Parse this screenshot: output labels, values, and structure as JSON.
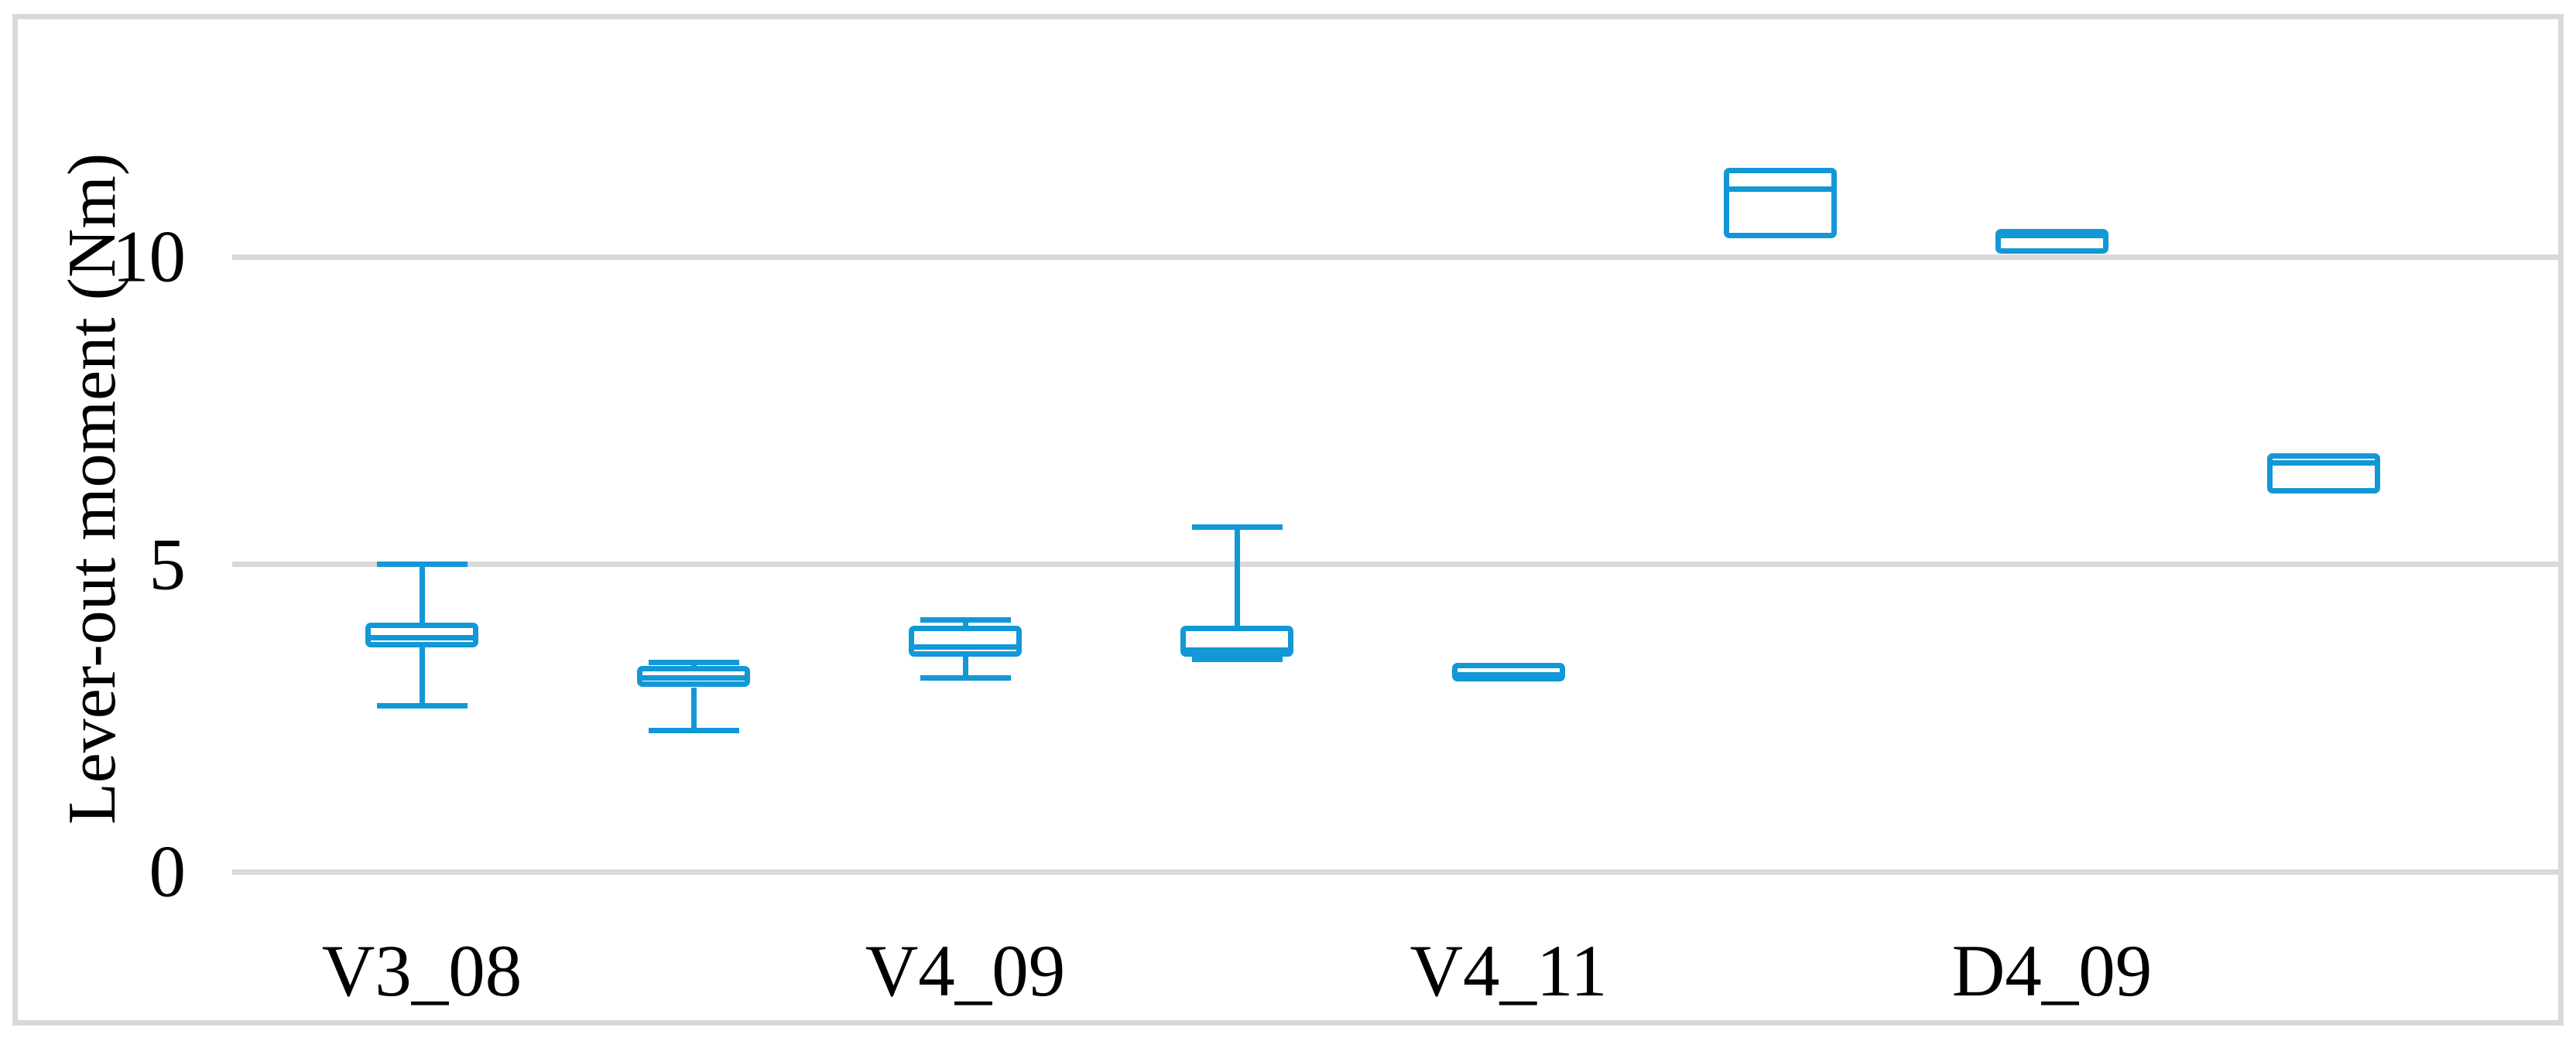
{
  "figure_title": "",
  "colors": {
    "box_blue": "#1298d6",
    "gridline_gray": "#d9d9d9",
    "frame_gray": "#d9d9d9",
    "text_black": "#000000"
  },
  "chart_data": {
    "type": "boxplot",
    "title": "",
    "xlabel": "",
    "ylabel": "Lever-out moment (Nm)",
    "ylim": [
      0,
      14
    ],
    "grid": "horizontal-only",
    "legend": "none",
    "yticks": [
      {
        "value": 0,
        "label": "0"
      },
      {
        "value": 5,
        "label": "5"
      },
      {
        "value": 10,
        "label": "10"
      }
    ],
    "categories": [
      "V3_08",
      "V4_09",
      "V4_11",
      "D4_09"
    ],
    "boxes_per_category": 2,
    "series": [
      {
        "category": "V3_08",
        "slot": 0,
        "min": 2.7,
        "q1": 3.65,
        "median": 3.8,
        "q3": 4.05,
        "max": 5.0
      },
      {
        "category": "V3_08",
        "slot": 1,
        "min": 2.3,
        "q1": 3.0,
        "median": 3.15,
        "q3": 3.35,
        "max": 3.4
      },
      {
        "category": "V4_09",
        "slot": 2,
        "min": 3.15,
        "q1": 3.5,
        "median": 3.65,
        "q3": 4.0,
        "max": 4.1
      },
      {
        "category": "V4_09",
        "slot": 3,
        "min": 3.45,
        "q1": 3.5,
        "median": 3.6,
        "q3": 4.0,
        "max": 5.6
      },
      {
        "category": "V4_11",
        "slot": 4,
        "min": 3.1,
        "q1": 3.1,
        "median": 3.2,
        "q3": 3.4,
        "max": 3.4
      },
      {
        "category": "V4_11",
        "slot": 5,
        "min": 10.3,
        "q1": 10.3,
        "median": 11.1,
        "q3": 11.45,
        "max": 11.45
      },
      {
        "category": "D4_09",
        "slot": 6,
        "min": 10.05,
        "q1": 10.05,
        "median": 10.35,
        "q3": 10.45,
        "max": 10.45
      },
      {
        "category": "D4_09",
        "slot": 7,
        "min": 6.15,
        "q1": 6.15,
        "median": 6.65,
        "q3": 6.8,
        "max": 6.8
      }
    ]
  }
}
